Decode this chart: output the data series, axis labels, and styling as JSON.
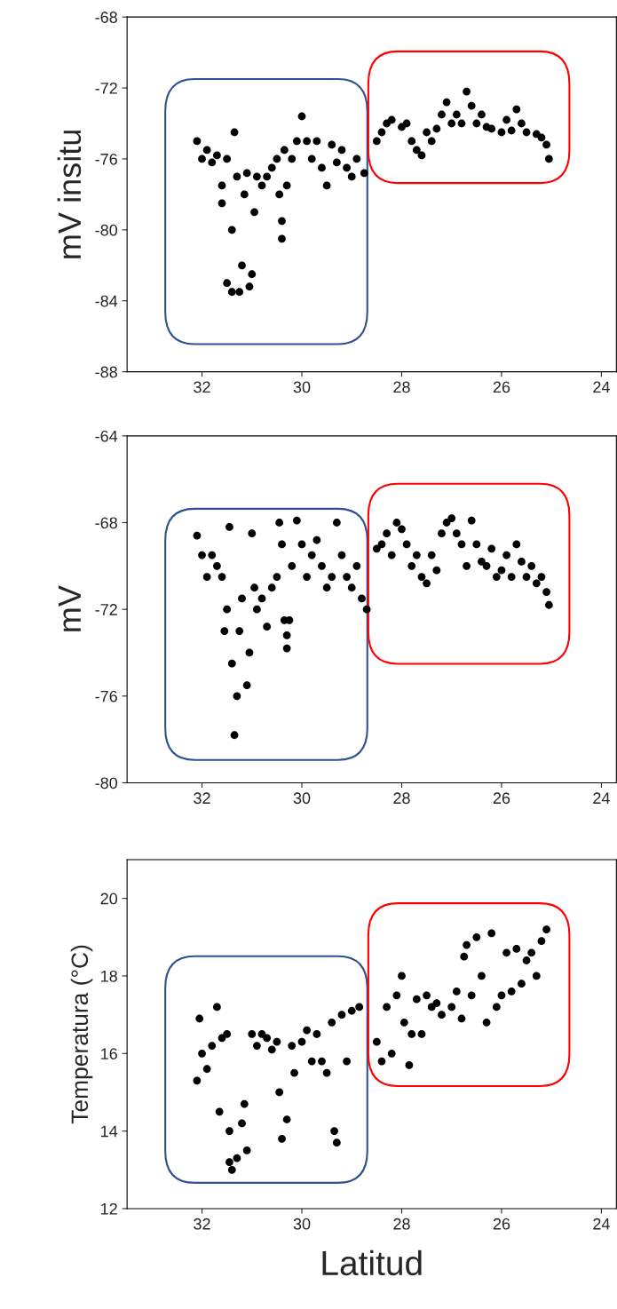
{
  "chart_data": [
    {
      "type": "scatter",
      "ylabel": "mV insitu",
      "xlim": [
        33.5,
        23.7
      ],
      "xticks": [
        32,
        30,
        28,
        26,
        24
      ],
      "ylim": [
        -88,
        -68
      ],
      "yticks": [
        -88,
        -84,
        -80,
        -76,
        -72,
        -68
      ],
      "marker": "circle",
      "series": [
        {
          "color": "#000000",
          "x": [
            32.1,
            32.0,
            31.9,
            31.8,
            31.7,
            31.6,
            31.6,
            31.5,
            31.5,
            31.4,
            31.4,
            31.35,
            31.3,
            31.25,
            31.2,
            31.15,
            31.1,
            31.05,
            31.0,
            30.95,
            30.9,
            30.8,
            30.7,
            30.6,
            30.5,
            30.45,
            30.4,
            30.4,
            30.35,
            30.3,
            30.2,
            30.1,
            30.0,
            29.9,
            29.8,
            29.7,
            29.6,
            29.5,
            29.4,
            29.3,
            29.2,
            29.1,
            29.0,
            28.9,
            28.75,
            28.5,
            28.4,
            28.3,
            28.2,
            28.0,
            27.9,
            27.8,
            27.7,
            27.6,
            27.5,
            27.4,
            27.3,
            27.2,
            27.1,
            27.0,
            26.9,
            26.8,
            26.7,
            26.6,
            26.5,
            26.4,
            26.3,
            26.2,
            26.0,
            25.9,
            25.8,
            25.7,
            25.6,
            25.5,
            25.3,
            25.2,
            25.1,
            25.05
          ],
          "values": [
            -75.0,
            -76.0,
            -75.5,
            -76.2,
            -75.8,
            -77.5,
            -78.5,
            -76.0,
            -83.0,
            -83.5,
            -80.0,
            -74.5,
            -77.0,
            -83.5,
            -82.0,
            -78.0,
            -76.8,
            -83.2,
            -82.5,
            -79.0,
            -77.0,
            -77.5,
            -77.0,
            -76.5,
            -76.0,
            -78.0,
            -80.5,
            -79.5,
            -75.5,
            -77.5,
            -76.0,
            -75.0,
            -73.6,
            -75.0,
            -76.0,
            -75.0,
            -76.5,
            -77.5,
            -75.2,
            -76.2,
            -75.5,
            -76.5,
            -77.0,
            -76.0,
            -76.8,
            -75.0,
            -74.5,
            -74.0,
            -73.8,
            -74.2,
            -74.0,
            -75.0,
            -75.5,
            -75.8,
            -74.5,
            -75.0,
            -74.3,
            -73.5,
            -72.8,
            -74.0,
            -73.5,
            -74.0,
            -72.2,
            -73.0,
            -74.0,
            -73.5,
            -74.2,
            -74.3,
            -74.5,
            -73.8,
            -74.4,
            -73.2,
            -74.0,
            -74.5,
            -74.6,
            -74.8,
            -75.2,
            -76.0
          ]
        }
      ]
    },
    {
      "type": "scatter",
      "ylabel": "mV",
      "xlim": [
        33.5,
        23.7
      ],
      "xticks": [
        32,
        30,
        28,
        26,
        24
      ],
      "ylim": [
        -80,
        -64
      ],
      "yticks": [
        -80,
        -76,
        -72,
        -68,
        -64
      ],
      "marker": "circle",
      "series": [
        {
          "color": "#000000",
          "x": [
            32.1,
            32.0,
            31.9,
            31.8,
            31.7,
            31.6,
            31.55,
            31.5,
            31.45,
            31.4,
            31.35,
            31.3,
            31.25,
            31.2,
            31.1,
            31.05,
            31.0,
            30.95,
            30.9,
            30.8,
            30.7,
            30.6,
            30.5,
            30.45,
            30.4,
            30.35,
            30.3,
            30.3,
            30.25,
            30.2,
            30.1,
            30.0,
            29.9,
            29.8,
            29.7,
            29.6,
            29.5,
            29.4,
            29.3,
            29.2,
            29.1,
            29.0,
            28.9,
            28.8,
            28.7,
            28.5,
            28.4,
            28.3,
            28.2,
            28.1,
            28.0,
            27.9,
            27.8,
            27.7,
            27.6,
            27.5,
            27.4,
            27.3,
            27.2,
            27.1,
            27.0,
            26.9,
            26.8,
            26.7,
            26.6,
            26.5,
            26.4,
            26.3,
            26.2,
            26.1,
            26.0,
            25.9,
            25.8,
            25.7,
            25.6,
            25.5,
            25.4,
            25.3,
            25.2,
            25.1,
            25.05
          ],
          "values": [
            -68.6,
            -69.5,
            -70.5,
            -69.5,
            -70.0,
            -70.5,
            -73.0,
            -72.0,
            -68.2,
            -74.5,
            -77.8,
            -76.0,
            -73.0,
            -71.5,
            -75.5,
            -74.0,
            -68.5,
            -71.0,
            -72.0,
            -71.5,
            -72.8,
            -71.0,
            -70.5,
            -68.0,
            -69.0,
            -72.5,
            -73.2,
            -73.8,
            -72.5,
            -70.0,
            -67.9,
            -69.0,
            -70.5,
            -69.5,
            -68.8,
            -70.0,
            -71.0,
            -70.5,
            -68.0,
            -69.5,
            -70.5,
            -71.0,
            -70.0,
            -71.5,
            -72.0,
            -69.2,
            -69.0,
            -68.5,
            -69.5,
            -68.0,
            -68.3,
            -69.0,
            -70.0,
            -69.5,
            -70.5,
            -70.8,
            -69.5,
            -70.2,
            -68.5,
            -68.0,
            -67.8,
            -68.5,
            -69.0,
            -70.0,
            -67.9,
            -69.0,
            -69.8,
            -70.0,
            -69.2,
            -70.5,
            -70.2,
            -69.5,
            -70.5,
            -69.0,
            -69.8,
            -70.5,
            -70.0,
            -70.8,
            -70.5,
            -71.2,
            -71.8
          ]
        }
      ]
    },
    {
      "type": "scatter",
      "ylabel": "Temperatura (°C)",
      "xlabel": "Latitud",
      "xlim": [
        33.5,
        23.7
      ],
      "xticks": [
        32,
        30,
        28,
        26,
        24
      ],
      "ylim": [
        12,
        21
      ],
      "yticks": [
        12,
        14,
        16,
        18,
        20
      ],
      "marker": "circle",
      "series": [
        {
          "color": "#000000",
          "x": [
            32.1,
            32.05,
            32.0,
            31.9,
            31.8,
            31.7,
            31.65,
            31.6,
            31.5,
            31.45,
            31.45,
            31.4,
            31.3,
            31.2,
            31.15,
            31.1,
            31.0,
            30.9,
            30.8,
            30.7,
            30.6,
            30.5,
            30.45,
            30.4,
            30.3,
            30.2,
            30.15,
            30.0,
            29.9,
            29.8,
            29.7,
            29.6,
            29.5,
            29.4,
            29.35,
            29.3,
            29.2,
            29.1,
            29.0,
            28.85,
            28.5,
            28.4,
            28.3,
            28.2,
            28.1,
            28.0,
            27.95,
            27.85,
            27.8,
            27.7,
            27.6,
            27.5,
            27.4,
            27.3,
            27.2,
            27.0,
            26.9,
            26.8,
            26.75,
            26.7,
            26.6,
            26.5,
            26.4,
            26.3,
            26.2,
            26.1,
            26.0,
            25.9,
            25.8,
            25.7,
            25.6,
            25.5,
            25.4,
            25.3,
            25.2,
            25.1
          ],
          "values": [
            15.3,
            16.9,
            16.0,
            15.6,
            16.2,
            17.2,
            14.5,
            16.4,
            16.5,
            13.2,
            14.0,
            13.0,
            13.3,
            14.2,
            14.7,
            13.5,
            16.5,
            16.2,
            16.5,
            16.4,
            16.1,
            16.3,
            15.0,
            13.8,
            14.3,
            16.2,
            15.5,
            16.3,
            16.6,
            15.8,
            16.5,
            15.8,
            15.5,
            16.8,
            14.0,
            13.7,
            17.0,
            15.8,
            17.1,
            17.2,
            16.3,
            15.8,
            17.2,
            16.0,
            17.5,
            18.0,
            16.8,
            15.7,
            16.5,
            17.4,
            16.5,
            17.5,
            17.2,
            17.3,
            17.0,
            17.2,
            17.6,
            16.9,
            18.5,
            18.8,
            17.5,
            19.0,
            18.0,
            16.8,
            19.1,
            17.2,
            17.5,
            18.6,
            17.6,
            18.7,
            17.8,
            18.4,
            18.6,
            18.0,
            18.9,
            19.2
          ]
        }
      ]
    }
  ]
}
